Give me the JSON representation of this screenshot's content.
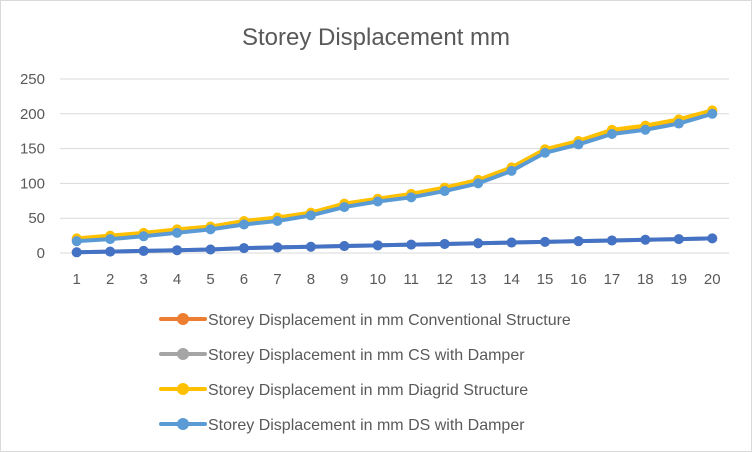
{
  "chart_data": {
    "type": "line",
    "title": "Storey Displacement mm",
    "xlabel": "",
    "ylabel": "",
    "categories": [
      "1",
      "2",
      "3",
      "4",
      "5",
      "6",
      "7",
      "8",
      "9",
      "10",
      "11",
      "12",
      "13",
      "14",
      "15",
      "16",
      "17",
      "18",
      "19",
      "20"
    ],
    "ylim": [
      0,
      250
    ],
    "yticks": [
      0,
      50,
      100,
      150,
      200,
      250
    ],
    "grid": true,
    "legend_position": "bottom",
    "series": [
      {
        "name": "Storey Displacement in mm Conventional Structure",
        "color": "#ed7d31",
        "values": [
          20,
          23,
          27,
          32,
          37,
          44,
          50,
          57,
          70,
          77,
          84,
          93,
          104,
          122,
          148,
          160,
          176,
          182,
          191,
          204
        ]
      },
      {
        "name": "Storey Displacement in mm CS with Damper",
        "color": "#a5a5a5",
        "values": [
          1,
          2,
          3,
          4,
          5,
          7,
          8,
          9,
          10,
          11,
          12,
          13,
          14,
          15,
          16,
          17,
          18,
          19,
          20,
          21
        ]
      },
      {
        "name": "Storey Displacement in mm Diagrid Structure",
        "color": "#ffc000",
        "values": [
          21,
          25,
          29,
          34,
          38,
          46,
          51,
          58,
          71,
          78,
          85,
          94,
          105,
          123,
          149,
          161,
          177,
          183,
          192,
          205
        ]
      },
      {
        "name": "Storey Displacement in mm DS with Damper",
        "color": "#5b9bd5",
        "values": [
          17,
          20,
          24,
          29,
          34,
          41,
          46,
          54,
          66,
          74,
          80,
          89,
          100,
          118,
          144,
          156,
          171,
          177,
          186,
          200
        ]
      }
    ],
    "overlay_series": {
      "color": "#4472c4",
      "values": [
        1,
        2,
        3,
        4,
        5,
        7,
        8,
        9,
        10,
        11,
        12,
        13,
        14,
        15,
        16,
        17,
        18,
        19,
        20,
        21
      ]
    }
  }
}
